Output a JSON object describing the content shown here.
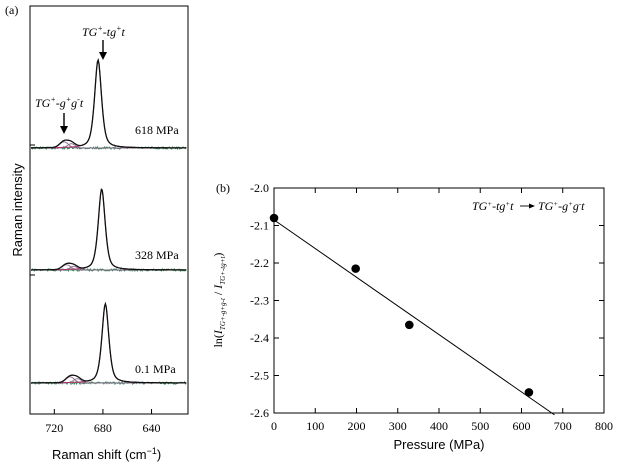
{
  "chart_data": [
    {
      "panel_label": "(a)",
      "type": "line",
      "xlabel": "Raman shift (cm",
      "xlabel_sup": "−1",
      "xlabel_close": ")",
      "ylabel": "Raman intensity",
      "xlim": [
        740,
        610
      ],
      "xticks": [
        720,
        680,
        640
      ],
      "series": [
        {
          "name": "618 MPa",
          "peak_x": 684,
          "peak_rel": 1.0,
          "minor_x": 712,
          "minor_rel": 0.07
        },
        {
          "name": "328 MPa",
          "peak_x": 681,
          "peak_rel": 0.92,
          "minor_x": 710,
          "minor_rel": 0.06
        },
        {
          "name": "0.1 MPa",
          "peak_x": 678,
          "peak_rel": 0.9,
          "minor_x": 707,
          "minor_rel": 0.07
        }
      ],
      "annotations": [
        {
          "text_main": "TG",
          "text_sup": "+",
          "text_rest": "-tg",
          "text_sup2": "+",
          "text_end": "t",
          "x": 684
        },
        {
          "text_main": "TG",
          "text_sup": "+",
          "text_rest": "-g",
          "text_sup2": "+",
          "text_mid": "g",
          "text_sup3": "-",
          "text_end": "t",
          "x": 712
        }
      ]
    },
    {
      "panel_label": "(b)",
      "type": "scatter",
      "xlabel": "Pressure (MPa)",
      "ylabel_prefix": "ln(",
      "ylabel_frac": "I",
      "ylabel_sub1": "TG+-g+g-t",
      "ylabel_slash": " / ",
      "ylabel_sub2": "TG+-tg+t",
      "ylabel_suffix": ")",
      "legend_text": {
        "from": "TG",
        "s1": "+",
        "from_rest": "-tg",
        "s2": "+",
        "from_end": "t",
        "to": "TG",
        "s3": "+",
        "to_rest": "-g",
        "s4": "+",
        "to_mid": "g",
        "s5": "-",
        "to_end": "t"
      },
      "xlim": [
        0,
        800
      ],
      "ylim": [
        -2.6,
        -2.0
      ],
      "xticks": [
        0,
        100,
        200,
        300,
        400,
        500,
        600,
        700,
        800
      ],
      "yticks": [
        -2.0,
        -2.1,
        -2.2,
        -2.3,
        -2.4,
        -2.5,
        -2.6
      ],
      "ytick_labels": [
        "-2.0",
        "-2.1",
        "-2.2",
        "-2.3",
        "-2.4",
        "-2.5",
        "-2.6"
      ],
      "x": [
        0.1,
        198,
        328,
        618
      ],
      "y": [
        -2.08,
        -2.215,
        -2.365,
        -2.545
      ],
      "fit": {
        "x": [
          0,
          680
        ],
        "y": [
          -2.085,
          -2.605
        ]
      }
    }
  ]
}
